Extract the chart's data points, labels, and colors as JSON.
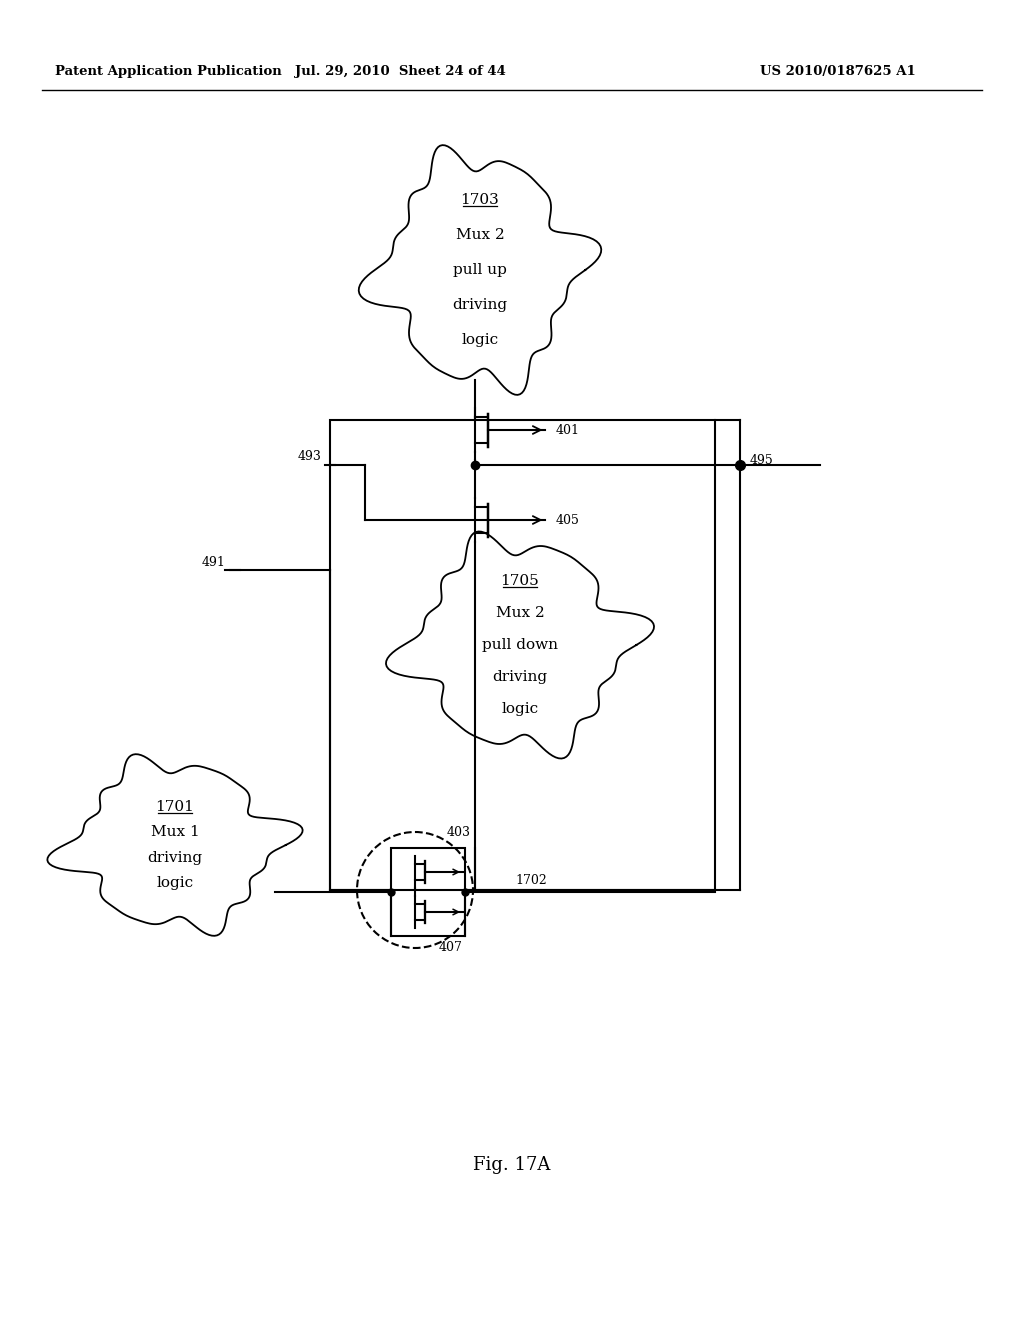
{
  "bg_color": "#ffffff",
  "header_left": "Patent Application Publication",
  "header_mid": "Jul. 29, 2010  Sheet 24 of 44",
  "header_right": "US 2010/0187625 A1",
  "footer_label": "Fig. 17A",
  "lw": 1.5
}
